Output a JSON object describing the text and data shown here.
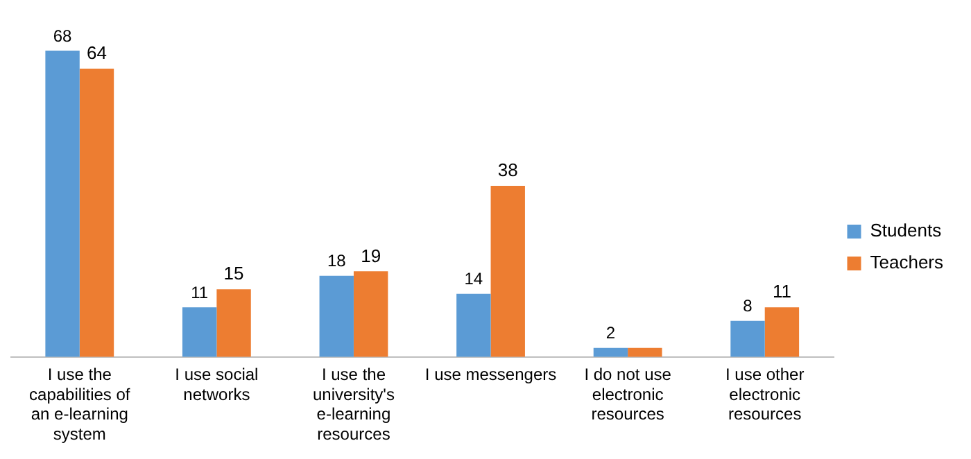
{
  "chart_data": {
    "type": "bar",
    "categories": [
      "I use the capabilities of an e-learning system",
      "I use social networks",
      "I use the university's e-learning resources",
      "I use messengers",
      "I do not use electronic resources",
      "I use other electronic resources"
    ],
    "series": [
      {
        "name": "Students",
        "color": "#5b9bd5",
        "values": [
          68,
          11,
          18,
          14,
          2,
          8
        ],
        "value_labels": [
          "68",
          "11",
          "18",
          "14",
          "2",
          "8"
        ]
      },
      {
        "name": "Teachers",
        "color": "#ed7d31",
        "values": [
          64,
          15,
          19,
          38,
          2,
          11
        ],
        "value_labels": [
          "64",
          "15",
          "19",
          "38",
          null,
          "11"
        ]
      }
    ],
    "legend": "right",
    "grid": false
  }
}
